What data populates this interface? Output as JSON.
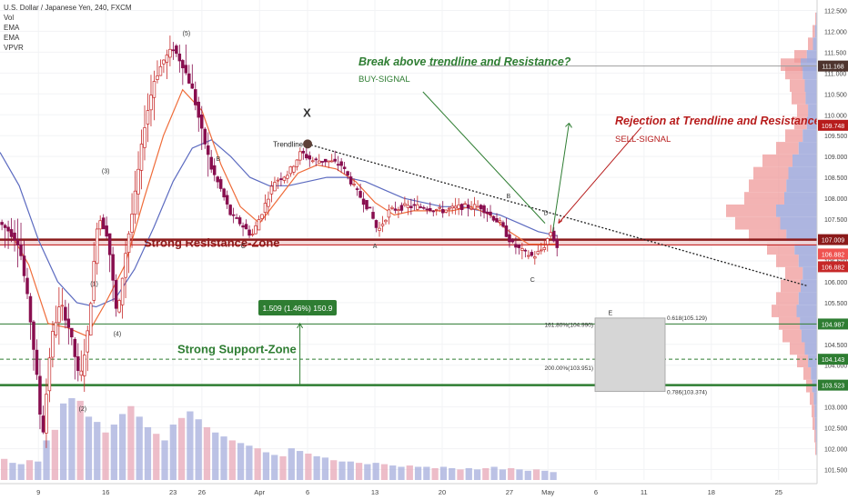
{
  "header": {
    "title": "U.S. Dollar / Japanese Yen, 240, FXCM",
    "indicators": [
      "Vol",
      "EMA",
      "EMA",
      "VPVR"
    ]
  },
  "chart_data": {
    "type": "line",
    "subtype": "candlestick-price-chart",
    "y_axis": {
      "range": [
        101.25,
        112.75
      ],
      "ticks": [
        101.5,
        102.0,
        102.5,
        103.0,
        103.5,
        104.0,
        104.5,
        105.0,
        105.5,
        106.0,
        106.5,
        107.0,
        107.5,
        108.0,
        108.5,
        109.0,
        109.5,
        110.0,
        110.5,
        111.0,
        111.5,
        112.0,
        112.5
      ],
      "tick_labels": [
        "101.500",
        "102.000",
        "102.500",
        "103.000",
        "103.500",
        "104.000",
        "104.500",
        "105.000",
        "105.500",
        "106.000",
        "106.500",
        "107.000",
        "107.500",
        "108.000",
        "108.500",
        "109.000",
        "109.500",
        "110.000",
        "110.500",
        "111.000",
        "111.500",
        "112.000",
        "112.500"
      ],
      "position": "right"
    },
    "x_axis": {
      "ticks": [
        {
          "t": 9,
          "label": "9"
        },
        {
          "t": 16,
          "label": "16"
        },
        {
          "t": 23,
          "label": "23"
        },
        {
          "t": 26,
          "label": "26"
        },
        {
          "t": 32,
          "label": "Apr"
        },
        {
          "t": 37,
          "label": "6"
        },
        {
          "t": 44,
          "label": "13"
        },
        {
          "t": 51,
          "label": "20"
        },
        {
          "t": 58,
          "label": "27"
        },
        {
          "t": 62,
          "label": "May"
        },
        {
          "t": 67,
          "label": "6"
        },
        {
          "t": 72,
          "label": "11"
        },
        {
          "t": 79,
          "label": "18"
        },
        {
          "t": 86,
          "label": "25"
        }
      ],
      "range": [
        5.0,
        90.0
      ]
    },
    "price_path": [
      [
        5.0,
        107.4
      ],
      [
        6.0,
        107.2
      ],
      [
        7.0,
        106.9
      ],
      [
        8.0,
        105.4
      ],
      [
        8.8,
        103.8
      ],
      [
        9.4,
        102.2
      ],
      [
        10.3,
        104.6
      ],
      [
        11.3,
        105.5
      ],
      [
        12.3,
        104.8
      ],
      [
        13.3,
        103.6
      ],
      [
        14.2,
        104.9
      ],
      [
        15.2,
        107.6
      ],
      [
        16.2,
        107.1
      ],
      [
        17.2,
        105.1
      ],
      [
        18.0,
        106.6
      ],
      [
        19.0,
        108.0
      ],
      [
        20.0,
        109.7
      ],
      [
        21.0,
        110.8
      ],
      [
        22.0,
        111.3
      ],
      [
        23.0,
        111.6
      ],
      [
        24.0,
        111.2
      ],
      [
        25.0,
        110.6
      ],
      [
        26.0,
        109.6
      ],
      [
        27.0,
        108.7
      ],
      [
        28.0,
        108.2
      ],
      [
        29.0,
        107.6
      ],
      [
        30.0,
        107.4
      ],
      [
        31.2,
        107.1
      ],
      [
        32.5,
        107.8
      ],
      [
        33.5,
        108.4
      ],
      [
        35.0,
        108.6
      ],
      [
        36.3,
        109.1
      ],
      [
        37.5,
        108.9
      ],
      [
        39.0,
        108.9
      ],
      [
        40.5,
        108.8
      ],
      [
        42.0,
        108.2
      ],
      [
        43.5,
        107.7
      ],
      [
        44.3,
        107.2
      ],
      [
        45.5,
        107.7
      ],
      [
        47.0,
        107.8
      ],
      [
        49.0,
        107.8
      ],
      [
        51.0,
        107.7
      ],
      [
        53.0,
        107.8
      ],
      [
        55.0,
        107.8
      ],
      [
        57.0,
        107.4
      ],
      [
        58.3,
        106.9
      ],
      [
        59.5,
        106.7
      ],
      [
        60.5,
        106.6
      ],
      [
        61.5,
        106.8
      ],
      [
        62.3,
        107.2
      ],
      [
        63.0,
        106.8
      ]
    ],
    "ema_fast_path": [
      [
        6.0,
        107.2
      ],
      [
        8.0,
        106.4
      ],
      [
        10.0,
        105.0
      ],
      [
        12.0,
        104.9
      ],
      [
        14.0,
        104.7
      ],
      [
        16.0,
        105.5
      ],
      [
        18.0,
        106.4
      ],
      [
        20.0,
        108.0
      ],
      [
        22.0,
        109.5
      ],
      [
        24.0,
        110.6
      ],
      [
        26.0,
        110.1
      ],
      [
        28.0,
        108.8
      ],
      [
        30.0,
        107.8
      ],
      [
        32.0,
        107.4
      ],
      [
        34.0,
        108.0
      ],
      [
        36.0,
        108.6
      ],
      [
        38.0,
        108.8
      ],
      [
        40.0,
        108.7
      ],
      [
        42.0,
        108.4
      ],
      [
        44.0,
        107.9
      ],
      [
        46.0,
        107.6
      ],
      [
        48.0,
        107.7
      ],
      [
        50.0,
        107.7
      ],
      [
        52.0,
        107.7
      ],
      [
        54.0,
        107.8
      ],
      [
        56.0,
        107.6
      ],
      [
        58.0,
        107.2
      ],
      [
        60.0,
        106.9
      ],
      [
        62.0,
        106.9
      ],
      [
        63.0,
        106.9
      ]
    ],
    "ema_slow_path": [
      [
        5.0,
        109.1
      ],
      [
        7.0,
        108.3
      ],
      [
        9.0,
        107.0
      ],
      [
        11.0,
        106.0
      ],
      [
        13.0,
        105.5
      ],
      [
        15.0,
        105.4
      ],
      [
        17.0,
        105.6
      ],
      [
        19.0,
        106.3
      ],
      [
        21.0,
        107.3
      ],
      [
        23.0,
        108.4
      ],
      [
        25.0,
        109.2
      ],
      [
        27.0,
        109.4
      ],
      [
        29.0,
        109.0
      ],
      [
        31.0,
        108.5
      ],
      [
        33.0,
        108.3
      ],
      [
        35.0,
        108.3
      ],
      [
        37.0,
        108.4
      ],
      [
        39.0,
        108.5
      ],
      [
        41.0,
        108.5
      ],
      [
        43.0,
        108.4
      ],
      [
        45.0,
        108.2
      ],
      [
        47.0,
        108.0
      ],
      [
        49.0,
        107.9
      ],
      [
        51.0,
        107.8
      ],
      [
        53.0,
        107.8
      ],
      [
        55.0,
        107.7
      ],
      [
        57.0,
        107.6
      ],
      [
        59.0,
        107.4
      ],
      [
        61.0,
        107.2
      ],
      [
        63.0,
        107.1
      ]
    ],
    "volume": [
      16,
      13,
      12,
      15,
      14,
      30,
      38,
      58,
      62,
      60,
      48,
      44,
      36,
      42,
      50,
      56,
      48,
      40,
      35,
      30,
      42,
      47,
      52,
      46,
      40,
      36,
      33,
      30,
      28,
      26,
      24,
      21,
      19,
      18,
      24,
      22,
      20,
      18,
      17,
      15,
      14,
      14,
      13,
      12,
      13,
      12,
      11,
      10,
      11,
      10,
      10,
      9,
      10,
      9,
      8,
      9,
      8,
      9,
      10,
      8,
      9,
      8,
      7,
      8,
      7,
      6
    ],
    "horizontal_levels": [
      {
        "value": 107.009,
        "label": "107.009",
        "style": "resistance",
        "color": "#8b1a1a"
      },
      {
        "value": 106.882,
        "label": "106.882",
        "style": "last-price",
        "color": "#ef5350"
      },
      {
        "value": 106.882,
        "label": "106.882",
        "style": "resistance-low",
        "color": "#c62828"
      },
      {
        "value": 104.987,
        "label": "104.987",
        "style": "thin",
        "color": "#2e7d32"
      },
      {
        "value": 104.143,
        "label": "104.143",
        "style": "dashed",
        "color": "#2e7d32"
      },
      {
        "value": 103.523,
        "label": "103.523",
        "style": "support",
        "color": "#2e7d32"
      },
      {
        "value": 111.168,
        "label": "111.168",
        "style": "thin-grey",
        "color": "#5d4037"
      },
      {
        "value": 109.748,
        "label": "109.748",
        "style": "target",
        "color": "#b71c1c"
      }
    ],
    "annotations": {
      "resistance_zone": "Strong Resistance-Zone",
      "support_zone": "Strong Support-Zone",
      "buy_title": "Break above trendline and Resistance?",
      "buy_signal": "BUY-SIGNAL",
      "sell_title": "Rejection at Trendline and Resistance?",
      "sell_signal": "SELL-SIGNAL",
      "trendline": "Trendline",
      "x_mark": "X",
      "measure": "1.509 (1.46%) 150.9",
      "wave_labels": [
        "(1)",
        "(2)",
        "(3)",
        "(4)",
        "(5)",
        "B",
        "C",
        "A",
        "B",
        "C",
        "D",
        "E"
      ],
      "fib_labels": [
        "161.80%(104.990)",
        "200.00%(103.951)",
        "0.618(105.129)",
        "0.786(103.374)"
      ]
    },
    "volume_profile": [
      [
        112.3,
        0.02
      ],
      [
        112.0,
        0.05
      ],
      [
        111.7,
        0.1
      ],
      [
        111.4,
        0.25
      ],
      [
        111.2,
        0.4
      ],
      [
        111.0,
        0.35
      ],
      [
        110.7,
        0.3
      ],
      [
        110.4,
        0.28
      ],
      [
        110.1,
        0.22
      ],
      [
        109.8,
        0.25
      ],
      [
        109.5,
        0.35
      ],
      [
        109.2,
        0.45
      ],
      [
        108.9,
        0.6
      ],
      [
        108.6,
        0.7
      ],
      [
        108.3,
        0.75
      ],
      [
        108.0,
        0.8
      ],
      [
        107.7,
        1.0
      ],
      [
        107.4,
        0.9
      ],
      [
        107.1,
        0.75
      ],
      [
        106.8,
        0.55
      ],
      [
        106.5,
        0.45
      ],
      [
        106.2,
        0.35
      ],
      [
        105.9,
        0.4
      ],
      [
        105.6,
        0.45
      ],
      [
        105.3,
        0.5
      ],
      [
        105.0,
        0.42
      ],
      [
        104.7,
        0.38
      ],
      [
        104.4,
        0.3
      ],
      [
        104.1,
        0.22
      ],
      [
        103.8,
        0.15
      ],
      [
        103.5,
        0.12
      ],
      [
        103.2,
        0.08
      ],
      [
        102.9,
        0.06
      ],
      [
        102.6,
        0.05
      ],
      [
        102.3,
        0.03
      ],
      [
        102.0,
        0.02
      ]
    ],
    "colors": {
      "up": "#c62828",
      "down": "#880e4f",
      "ema_fast": "#ef6c3a",
      "ema_slow": "#5c6bc0",
      "resistance": "#8b1a1a",
      "support": "#2e7d32",
      "buy": "#2e7d32",
      "sell": "#b71c1c",
      "volume": "#9fa8da",
      "vp_up": "#ef9a9a",
      "vp_down": "#9fa8da",
      "axis_text": "#333333"
    }
  }
}
